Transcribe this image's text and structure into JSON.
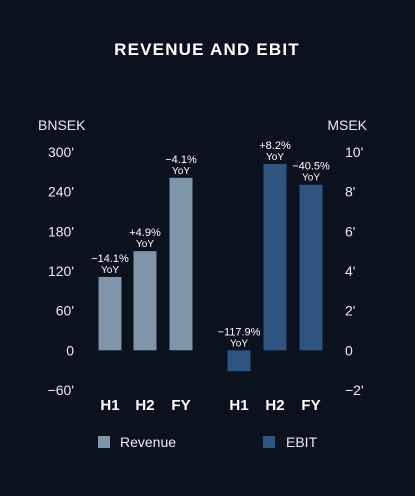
{
  "chart_data": [
    {
      "type": "bar",
      "title": "REVENUE AND EBIT",
      "unit_label": "BNSEK",
      "categories": [
        "H1",
        "H2",
        "FY"
      ],
      "series": [
        {
          "name": "Revenue",
          "values": [
            111,
            150,
            261
          ],
          "color": "#7f95aa"
        }
      ],
      "data_labels": [
        {
          "pct": "−14.1%",
          "note": "YoY"
        },
        {
          "pct": "+4.9%",
          "note": "YoY"
        },
        {
          "pct": "−4.1%",
          "note": "YoY"
        }
      ],
      "y_ticks": [
        "300'",
        "240'",
        "180'",
        "120'",
        "60'",
        "0",
        "−60'"
      ],
      "ylim": [
        -60,
        300
      ],
      "grid": false,
      "legend": "bottom"
    },
    {
      "type": "bar",
      "unit_label": "MSEK",
      "categories": [
        "H1",
        "H2",
        "FY"
      ],
      "series": [
        {
          "name": "EBIT",
          "values": [
            -1.05,
            9.4,
            8.35
          ],
          "color": "#2f5480"
        }
      ],
      "data_labels": [
        {
          "pct": "−117.9%",
          "note": "YoY"
        },
        {
          "pct": "+8.2%",
          "note": "YoY"
        },
        {
          "pct": "−40.5%",
          "note": "YoY"
        }
      ],
      "y_ticks": [
        "10'",
        "8'",
        "6'",
        "4'",
        "2'",
        "0",
        "−2'"
      ],
      "ylim": [
        -2,
        10
      ],
      "grid": false,
      "legend": "bottom"
    }
  ]
}
